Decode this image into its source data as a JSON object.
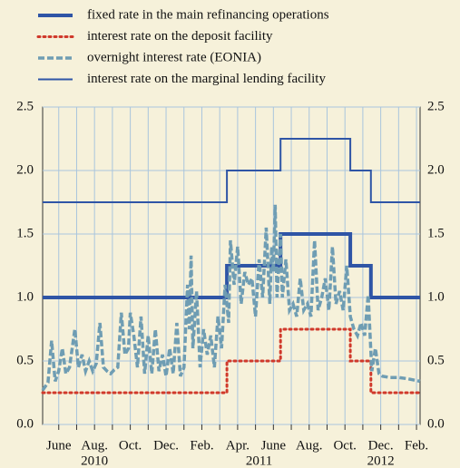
{
  "chart_data": {
    "type": "line",
    "xlim": [
      5.1,
      26.2
    ],
    "ylim": [
      0,
      2.5
    ],
    "yticks": [
      {
        "value": 0,
        "label": "0.0"
      },
      0.5,
      {
        "value": 1,
        "label": "1.0"
      },
      1.5,
      {
        "value": 2,
        "label": "2.0"
      },
      2.5
    ],
    "xticks": [
      {
        "value": 6,
        "label": "June"
      },
      {
        "value": 8,
        "label": "Aug."
      },
      {
        "value": 10,
        "label": "Oct."
      },
      {
        "value": 12,
        "label": "Dec."
      },
      {
        "value": 14,
        "label": "Feb."
      },
      {
        "value": 16,
        "label": "Apr."
      },
      {
        "value": 18,
        "label": "June"
      },
      {
        "value": 20,
        "label": "Aug."
      },
      {
        "value": 22,
        "label": "Oct."
      },
      {
        "value": 24,
        "label": "Dec."
      },
      {
        "value": 26,
        "label": "Feb."
      }
    ],
    "xminor": [
      6,
      7,
      8,
      9,
      10,
      11,
      12,
      13,
      14,
      15,
      16,
      17,
      18,
      19,
      20,
      21,
      22,
      23,
      24,
      25,
      26
    ],
    "year_labels": [
      {
        "value": 8.0,
        "label": "2010"
      },
      {
        "value": 17.2,
        "label": "2011"
      },
      {
        "value": 24.0,
        "label": "2012"
      }
    ],
    "grid": true,
    "series": [
      {
        "name": "fixed rate in the main refinancing operations",
        "color": "#2f55a6",
        "line_style": "solid",
        "line_width": 4,
        "x": [
          5.1,
          15.4,
          15.4,
          18.4,
          18.4,
          22.3,
          22.3,
          23.45,
          23.45,
          26.2
        ],
        "values": [
          1,
          1,
          1.25,
          1.25,
          1.5,
          1.5,
          1.25,
          1.25,
          1,
          1
        ]
      },
      {
        "name": "interest rate on the deposit facility",
        "color": "#d0392b",
        "line_style": "dotted",
        "line_width": 3,
        "x": [
          5.1,
          15.4,
          15.4,
          18.4,
          18.4,
          22.3,
          22.3,
          23.45,
          23.45,
          26.2
        ],
        "values": [
          0.25,
          0.25,
          0.5,
          0.5,
          0.75,
          0.75,
          0.5,
          0.5,
          0.25,
          0.25
        ]
      },
      {
        "name": "overnight interest rate (EONIA)",
        "color": "#6f9db3",
        "line_style": "dashed",
        "line_width": 3.5,
        "x": [
          5.1,
          5.4,
          5.6,
          5.8,
          6.0,
          6.2,
          6.4,
          6.6,
          6.9,
          7.1,
          7.3,
          7.5,
          7.7,
          7.9,
          8.1,
          8.3,
          8.5,
          8.7,
          8.9,
          9.1,
          9.3,
          9.5,
          9.7,
          9.9,
          10.0,
          10.2,
          10.4,
          10.6,
          10.8,
          11.0,
          11.2,
          11.4,
          11.6,
          11.8,
          12.0,
          12.2,
          12.4,
          12.6,
          12.8,
          13.0,
          13.2,
          13.3,
          13.4,
          13.5,
          13.7,
          13.9,
          14.1,
          14.3,
          14.5,
          14.7,
          14.9,
          15.1,
          15.3,
          15.5,
          15.6,
          15.8,
          16.0,
          16.2,
          16.4,
          16.6,
          16.8,
          17.0,
          17.2,
          17.4,
          17.6,
          17.8,
          17.9,
          18.0,
          18.1,
          18.2,
          18.4,
          18.5,
          18.7,
          18.9,
          19.1,
          19.3,
          19.5,
          19.7,
          19.9,
          20.1,
          20.3,
          20.5,
          20.7,
          20.9,
          21.1,
          21.3,
          21.5,
          21.7,
          21.9,
          22.1,
          22.3,
          22.5,
          22.7,
          22.9,
          23.1,
          23.3,
          23.5,
          23.7,
          23.9,
          24.1,
          24.5,
          25.0,
          25.5,
          26.2
        ],
        "values": [
          0.27,
          0.33,
          0.66,
          0.34,
          0.42,
          0.6,
          0.4,
          0.45,
          0.75,
          0.45,
          0.55,
          0.42,
          0.5,
          0.42,
          0.48,
          0.8,
          0.45,
          0.42,
          0.4,
          0.43,
          0.45,
          0.88,
          0.55,
          0.6,
          0.88,
          0.7,
          0.45,
          0.85,
          0.4,
          0.7,
          0.4,
          0.75,
          0.42,
          0.55,
          0.38,
          0.6,
          0.4,
          0.8,
          0.38,
          0.45,
          1.1,
          0.75,
          1.33,
          0.6,
          1.05,
          0.45,
          0.75,
          0.55,
          0.7,
          0.45,
          0.85,
          0.6,
          1.1,
          0.8,
          1.45,
          1.1,
          1.4,
          0.95,
          1.2,
          1.1,
          1.15,
          0.85,
          1.3,
          1.0,
          1.55,
          0.95,
          1.4,
          1.2,
          1.73,
          1.0,
          1.5,
          1.0,
          1.3,
          0.9,
          0.95,
          0.85,
          1.15,
          0.9,
          0.95,
          0.85,
          1.45,
          0.9,
          1.0,
          1.15,
          0.9,
          1.4,
          0.95,
          1.05,
          0.9,
          1.25,
          0.85,
          0.75,
          0.7,
          0.8,
          0.7,
          1.02,
          0.42,
          0.6,
          0.4,
          0.38,
          0.37,
          0.37,
          0.36,
          0.34
        ]
      },
      {
        "name": "interest rate on the marginal lending facility",
        "color": "#2f55a6",
        "line_style": "solid",
        "line_width": 2,
        "x": [
          5.1,
          15.4,
          15.4,
          18.4,
          18.4,
          22.3,
          22.3,
          23.45,
          23.45,
          26.2
        ],
        "values": [
          1.75,
          1.75,
          2,
          2,
          2.25,
          2.25,
          2,
          2,
          1.75,
          1.75
        ]
      }
    ]
  }
}
